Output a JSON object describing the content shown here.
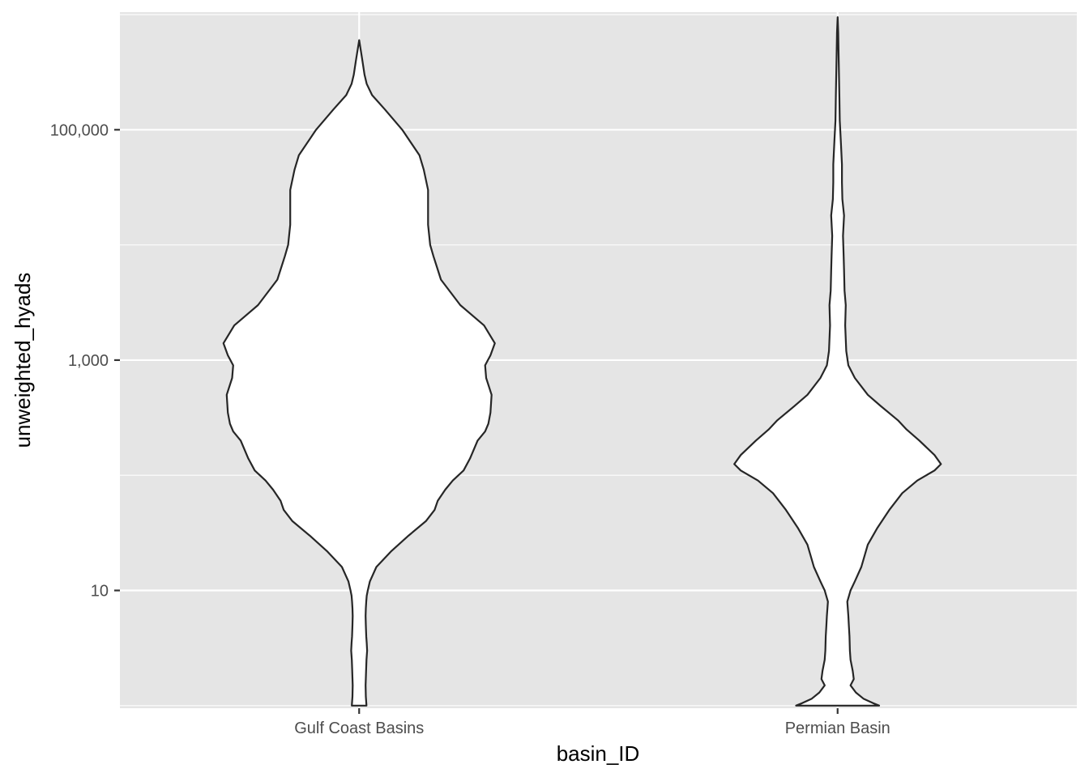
{
  "chart_data": {
    "type": "violin",
    "xlabel": "basin_ID",
    "ylabel": "unweighted_hyads",
    "y_scale": "log10",
    "ylim": [
      0.95,
      1050000
    ],
    "y_major_ticks": [
      {
        "value": 10,
        "label": "10"
      },
      {
        "value": 1000,
        "label": "1,000"
      },
      {
        "value": 100000,
        "label": "100,000"
      }
    ],
    "y_minor_ticks": [
      1,
      100,
      10000,
      1000000
    ],
    "grid": true,
    "background": "#e5e5e5",
    "grid_color": "#ffffff",
    "outline_color": "#262626",
    "fill_color": "#ffffff",
    "categories": [
      "Gulf Coast Basins",
      "Permian Basin"
    ],
    "violins": [
      {
        "category": "Gulf Coast Basins",
        "min": 1,
        "max": 600000,
        "profile": [
          [
            1,
            0.034
          ],
          [
            1.2,
            0.031
          ],
          [
            1.5,
            0.03
          ],
          [
            2,
            0.032
          ],
          [
            2.5,
            0.034
          ],
          [
            3,
            0.037
          ],
          [
            3.5,
            0.035
          ],
          [
            4,
            0.033
          ],
          [
            5,
            0.031
          ],
          [
            6,
            0.03
          ],
          [
            7,
            0.031
          ],
          [
            8,
            0.033
          ],
          [
            9,
            0.035
          ],
          [
            10,
            0.04
          ],
          [
            12,
            0.05
          ],
          [
            16,
            0.08
          ],
          [
            22,
            0.15
          ],
          [
            30,
            0.23
          ],
          [
            40,
            0.31
          ],
          [
            50,
            0.35
          ],
          [
            60,
            0.365
          ],
          [
            75,
            0.4
          ],
          [
            90,
            0.435
          ],
          [
            110,
            0.485
          ],
          [
            140,
            0.515
          ],
          [
            200,
            0.55
          ],
          [
            240,
            0.585
          ],
          [
            280,
            0.6
          ],
          [
            350,
            0.61
          ],
          [
            500,
            0.615
          ],
          [
            700,
            0.59
          ],
          [
            900,
            0.585
          ],
          [
            1100,
            0.61
          ],
          [
            1400,
            0.63
          ],
          [
            2000,
            0.58
          ],
          [
            3000,
            0.47
          ],
          [
            5000,
            0.38
          ],
          [
            8000,
            0.345
          ],
          [
            10000,
            0.33
          ],
          [
            15000,
            0.32
          ],
          [
            20000,
            0.32
          ],
          [
            30000,
            0.32
          ],
          [
            45000,
            0.3
          ],
          [
            60000,
            0.28
          ],
          [
            100000,
            0.2
          ],
          [
            150000,
            0.12
          ],
          [
            200000,
            0.06
          ],
          [
            250000,
            0.035
          ],
          [
            300000,
            0.025
          ],
          [
            400000,
            0.015
          ],
          [
            600000,
            0.0
          ]
        ]
      },
      {
        "category": "Permian Basin",
        "min": 1,
        "max": 950000,
        "profile": [
          [
            1,
            0.193
          ],
          [
            1.05,
            0.165
          ],
          [
            1.15,
            0.12
          ],
          [
            1.3,
            0.085
          ],
          [
            1.5,
            0.06
          ],
          [
            1.7,
            0.075
          ],
          [
            2,
            0.07
          ],
          [
            2.5,
            0.06
          ],
          [
            3,
            0.057
          ],
          [
            4,
            0.055
          ],
          [
            5,
            0.052
          ],
          [
            6,
            0.05
          ],
          [
            8,
            0.045
          ],
          [
            10,
            0.06
          ],
          [
            12,
            0.08
          ],
          [
            16,
            0.11
          ],
          [
            25,
            0.14
          ],
          [
            35,
            0.185
          ],
          [
            50,
            0.24
          ],
          [
            70,
            0.3
          ],
          [
            90,
            0.37
          ],
          [
            110,
            0.45
          ],
          [
            125,
            0.48
          ],
          [
            150,
            0.45
          ],
          [
            200,
            0.38
          ],
          [
            250,
            0.32
          ],
          [
            300,
            0.28
          ],
          [
            400,
            0.2
          ],
          [
            500,
            0.14
          ],
          [
            700,
            0.08
          ],
          [
            900,
            0.05
          ],
          [
            1200,
            0.04
          ],
          [
            2000,
            0.035
          ],
          [
            3000,
            0.038
          ],
          [
            4000,
            0.032
          ],
          [
            6000,
            0.03
          ],
          [
            8000,
            0.028
          ],
          [
            12000,
            0.025
          ],
          [
            18000,
            0.03
          ],
          [
            25000,
            0.022
          ],
          [
            35000,
            0.02
          ],
          [
            50000,
            0.02
          ],
          [
            80000,
            0.015
          ],
          [
            120000,
            0.01
          ],
          [
            200000,
            0.008
          ],
          [
            400000,
            0.005
          ],
          [
            700000,
            0.003
          ],
          [
            950000,
            0.0
          ]
        ]
      }
    ]
  }
}
